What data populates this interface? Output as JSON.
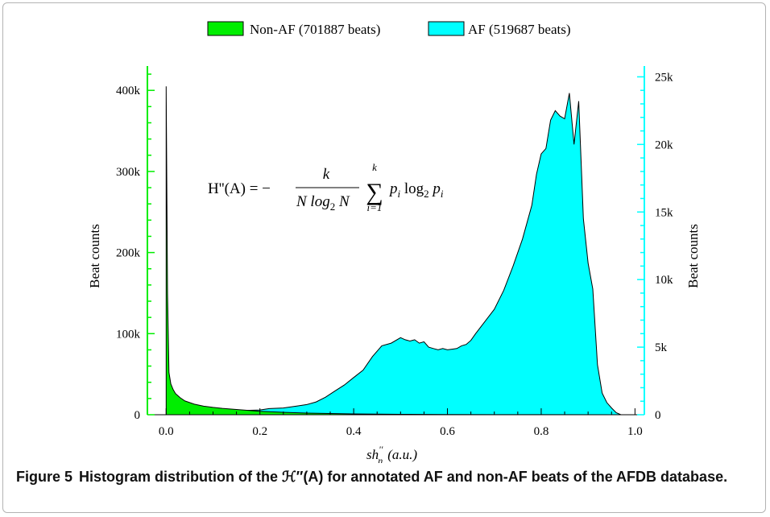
{
  "chart_data": {
    "type": "area",
    "title": "",
    "legend": {
      "placement": "top-center",
      "entries": [
        {
          "label": "Non-AF (701887 beats)",
          "color": "#00ee00"
        },
        {
          "label": "AF (519687 beats)",
          "color": "#00ffff"
        }
      ]
    },
    "formula": {
      "lhs": "H''(A) = −",
      "frac_num": "k",
      "frac_den_1": "N log",
      "frac_den_sub": "2",
      "frac_den_2": " N",
      "sum_top": "k",
      "sum_sym": "∑",
      "sum_bottom": "i=1",
      "rhs_1": "p",
      "rhs_sub1": "i",
      "rhs_2": " log",
      "rhs_sub2": "2",
      "rhs_3": " p",
      "rhs_sub3": "i"
    },
    "xlabel": {
      "main": "sh",
      "sup": "''",
      "sub": "n",
      "unit": "(a.u.)"
    },
    "xlim": [
      -0.04,
      1.02
    ],
    "xticks": [
      "0.0",
      "0.2",
      "0.4",
      "0.6",
      "0.8",
      "1.0"
    ],
    "y_left": {
      "label": "Beat counts",
      "lim": [
        0,
        430000
      ],
      "ticks": [
        "0",
        "100k",
        "200k",
        "300k",
        "400k"
      ],
      "color": "#00ee00"
    },
    "y_right": {
      "label": "Beat counts",
      "lim": [
        0,
        25800
      ],
      "ticks": [
        "0",
        "5k",
        "10k",
        "15k",
        "20k",
        "25k"
      ],
      "color": "#00ffff"
    },
    "series": [
      {
        "name": "Non-AF (701887 beats)",
        "axis": "left",
        "color": "#00ee00",
        "x": [
          0.0,
          0.003,
          0.006,
          0.01,
          0.015,
          0.02,
          0.03,
          0.04,
          0.05,
          0.06,
          0.08,
          0.1,
          0.12,
          0.15,
          0.2,
          0.25,
          0.3,
          0.4,
          0.5,
          0.6,
          0.7,
          0.8,
          0.97
        ],
        "y": [
          405000,
          150000,
          52000,
          38000,
          31000,
          26000,
          21000,
          17000,
          15000,
          13000,
          10500,
          9000,
          7800,
          6500,
          4200,
          3000,
          2000,
          1000,
          500,
          250,
          120,
          50,
          0
        ]
      },
      {
        "name": "AF (519687 beats)",
        "axis": "right",
        "color": "#00ffff",
        "x": [
          0.0,
          0.05,
          0.1,
          0.15,
          0.2,
          0.22,
          0.25,
          0.28,
          0.3,
          0.32,
          0.34,
          0.36,
          0.38,
          0.4,
          0.42,
          0.44,
          0.46,
          0.48,
          0.5,
          0.51,
          0.52,
          0.53,
          0.54,
          0.55,
          0.56,
          0.57,
          0.58,
          0.59,
          0.6,
          0.61,
          0.62,
          0.63,
          0.64,
          0.65,
          0.66,
          0.68,
          0.7,
          0.72,
          0.74,
          0.76,
          0.78,
          0.79,
          0.8,
          0.81,
          0.82,
          0.83,
          0.84,
          0.85,
          0.86,
          0.87,
          0.88,
          0.89,
          0.9,
          0.91,
          0.92,
          0.93,
          0.94,
          0.95,
          0.96,
          0.97
        ],
        "y": [
          0,
          100,
          250,
          300,
          350,
          450,
          500,
          650,
          750,
          950,
          1300,
          1750,
          2200,
          2750,
          3300,
          4300,
          5100,
          5300,
          5700,
          5550,
          5450,
          5550,
          5300,
          5400,
          5000,
          4900,
          4800,
          4900,
          4800,
          4850,
          4900,
          5100,
          5200,
          5500,
          6000,
          6900,
          7800,
          9200,
          11000,
          13000,
          15500,
          17800,
          19300,
          19700,
          21800,
          22500,
          22100,
          21900,
          23800,
          20000,
          23200,
          14500,
          11200,
          9300,
          3700,
          1600,
          900,
          500,
          150,
          0
        ]
      }
    ]
  },
  "caption": {
    "label": "Figure 5",
    "text": "Histogram distribution of the ℋ″(A) for annotated AF and non-AF beats of the AFDB database."
  }
}
